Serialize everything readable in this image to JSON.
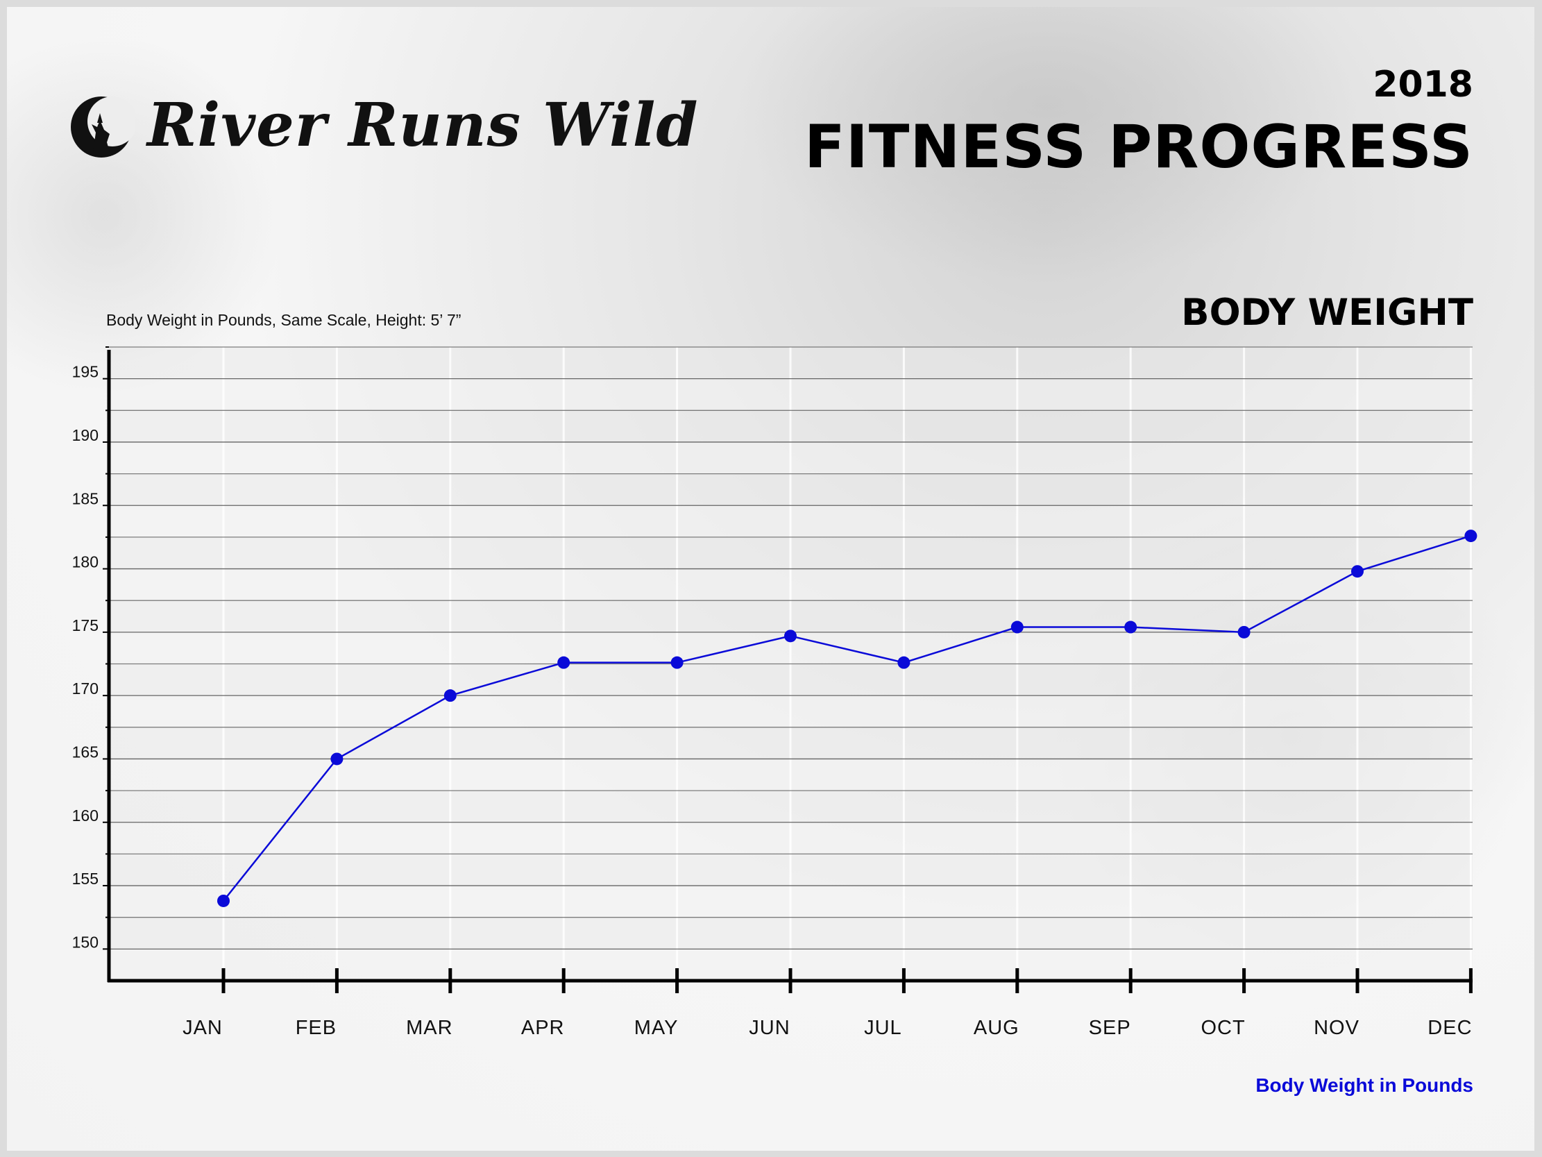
{
  "brand": {
    "name": "River Runs Wild",
    "logo_icon": "wolf-moon-icon"
  },
  "header": {
    "year": "2018",
    "title": "FITNESS PROGRESS"
  },
  "colors": {
    "series": "#0a0ad8",
    "axis": "#000000",
    "grid": "#555555"
  },
  "chart_data": {
    "type": "line",
    "title": "BODY WEIGHT",
    "subtitle": "Body Weight in Pounds, Same Scale, Height: 5’ 7”",
    "categories": [
      "JAN",
      "FEB",
      "MAR",
      "APR",
      "MAY",
      "JUN",
      "JUL",
      "AUG",
      "SEP",
      "OCT",
      "NOV",
      "DEC"
    ],
    "series": [
      {
        "name": "Body Weight in Pounds",
        "values": [
          153.8,
          165,
          170,
          172.6,
          172.6,
          174.7,
          172.6,
          175.4,
          175.4,
          175,
          179.8,
          182.6
        ]
      }
    ],
    "yticks": [
      150,
      155,
      160,
      165,
      170,
      175,
      180,
      185,
      190,
      195
    ],
    "ylim": [
      147.5,
      197.5
    ],
    "grid": true,
    "legend_position": "bottom-right"
  }
}
